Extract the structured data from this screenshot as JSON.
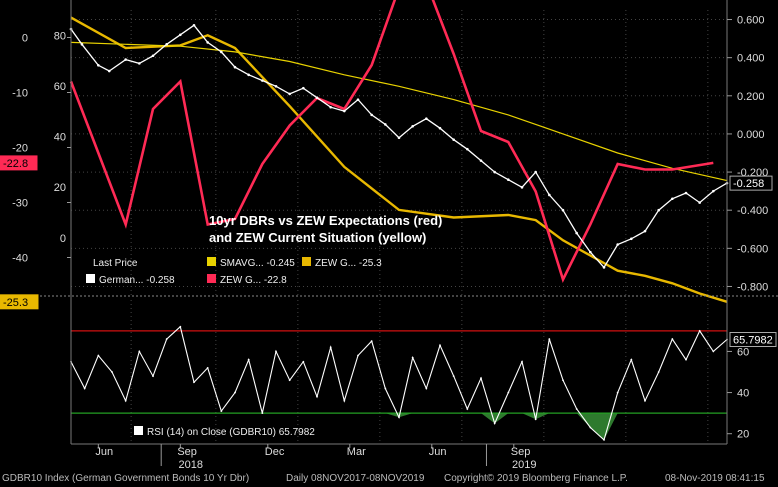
{
  "colors": {
    "background": "#000000",
    "dbr_price": "#ffffff",
    "smavg": "#e8d200",
    "zew_current": "#e8b800",
    "zew_expectations": "#ff2a55",
    "rsi": "#ffffff",
    "rsi_upper": "#d01010",
    "rsi_lower": "#23a023",
    "rsi_fill": "#2e7a2e",
    "grid": "#444444"
  },
  "footer": {
    "ticker": "GDBR10 Index (German Government Bonds 10 Yr Dbr)",
    "range": "Daily 08NOV2017-08NOV2019",
    "copyright": "Copyright© 2019 Bloomberg Finance L.P.",
    "timestamp": "08-Nov-2019 08:41:15"
  },
  "chart_data": [
    {
      "type": "line",
      "title": "10yr DBRs vs ZEW Expectations (red) and ZEW Current Situation (yellow)",
      "title_lines": [
        "10yr DBRs vs ZEW Expectations (red)",
        "and ZEW Current Situation (yellow)"
      ],
      "x_ticks": [
        "Jun",
        "Sep",
        "Dec",
        "Mar",
        "Jun",
        "Sep"
      ],
      "x_years": [
        "2018",
        "2019"
      ],
      "right_axis": {
        "ticks": [
          "0.600",
          "0.400",
          "0.200",
          "0.000",
          "-0.200",
          "-0.400",
          "-0.600",
          "-0.800"
        ],
        "ylim": [
          -0.85,
          0.65
        ]
      },
      "left_axis_red": {
        "ticks": [
          "0",
          "-10",
          "-20",
          "-30",
          "-40"
        ],
        "ylim": [
          -47,
          5
        ]
      },
      "left_axis_yellow": {
        "ticks": [
          "80",
          "60",
          "40",
          "20",
          "0"
        ],
        "ylim": [
          -23,
          90
        ]
      },
      "legend": {
        "header": "Last Price",
        "items": [
          {
            "label": "German... -0.258",
            "color_key": "dbr_price"
          },
          {
            "label": "SMAVG... -0.245",
            "color_key": "smavg"
          },
          {
            "label": "ZEW G... -25.3",
            "color_key": "zew_current"
          },
          {
            "label": "ZEW G... -22.8",
            "color_key": "zew_expectations"
          }
        ]
      },
      "last_value_tags": {
        "dbr": "-0.258",
        "zew_expectations": "-22.8",
        "zew_current": "-25.3"
      },
      "series": [
        {
          "name": "German...",
          "axis": "right",
          "x": [
            0,
            0.4,
            1,
            1.4,
            2,
            2.5,
            3,
            3.5,
            4,
            4.5,
            5,
            5.5,
            6,
            6.5,
            7,
            7.5,
            8,
            8.5,
            9,
            9.5,
            10,
            10.5,
            11,
            11.5,
            12,
            12.5,
            13,
            13.5,
            14,
            14.5,
            15,
            15.5,
            16,
            16.5,
            17,
            17.5,
            18,
            18.5,
            19,
            19.5,
            20,
            20.5,
            21,
            21.5,
            22,
            22.5,
            23,
            23.5,
            24
          ],
          "values": [
            0.55,
            0.47,
            0.36,
            0.33,
            0.39,
            0.37,
            0.41,
            0.47,
            0.52,
            0.57,
            0.48,
            0.43,
            0.35,
            0.31,
            0.28,
            0.25,
            0.21,
            0.24,
            0.19,
            0.14,
            0.12,
            0.18,
            0.1,
            0.05,
            -0.02,
            0.04,
            0.08,
            0.03,
            -0.03,
            -0.08,
            -0.14,
            -0.2,
            -0.24,
            -0.28,
            -0.2,
            -0.32,
            -0.4,
            -0.52,
            -0.62,
            -0.7,
            -0.58,
            -0.55,
            -0.51,
            -0.4,
            -0.34,
            -0.31,
            -0.36,
            -0.3,
            -0.258
          ]
        },
        {
          "name": "SMAVG...",
          "axis": "right",
          "x": [
            0,
            2,
            4,
            6,
            8,
            10,
            12,
            14,
            16,
            18,
            20,
            22,
            24
          ],
          "values": [
            0.48,
            0.47,
            0.46,
            0.43,
            0.38,
            0.31,
            0.25,
            0.18,
            0.1,
            0.0,
            -0.1,
            -0.18,
            -0.245
          ]
        },
        {
          "name": "ZEW G...",
          "axis": "left_red",
          "x": [
            0,
            2,
            3,
            4,
            5,
            6,
            7,
            8,
            9,
            10,
            11,
            12,
            13,
            14,
            15,
            16,
            17,
            18,
            19,
            20,
            21,
            22,
            23.5
          ],
          "values": [
            -8,
            -34,
            -13,
            -8,
            -34,
            -33,
            -23,
            -16,
            -11,
            -13,
            -5,
            9,
            10,
            -3,
            -17,
            -19,
            -28,
            -44,
            -34,
            -23,
            -24,
            -24,
            -22.8
          ]
        },
        {
          "name": "ZEW G...",
          "axis": "left_yellow",
          "x": [
            0,
            2,
            4,
            5,
            6,
            8,
            10,
            12,
            14,
            16,
            17,
            18,
            19,
            20,
            21,
            22,
            23,
            24
          ],
          "values": [
            87,
            75,
            76,
            80,
            75,
            52,
            28,
            11,
            8,
            9,
            7,
            -1,
            -7,
            -13,
            -15,
            -18,
            -22,
            -25.3
          ]
        }
      ]
    },
    {
      "type": "line",
      "title": "RSI (14) on Close (GDBR10)",
      "legend_label": "RSI (14)  on Close (GDBR10) 65.7982",
      "last_value_tag": "65.7982",
      "y_ticks": [
        "60",
        "40",
        "20"
      ],
      "ylim": [
        15,
        85
      ],
      "levels": [
        70,
        30
      ],
      "series": [
        {
          "name": "RSI (14)",
          "x": [
            0,
            0.5,
            1,
            1.5,
            2,
            2.5,
            3,
            3.5,
            4,
            4.5,
            5,
            5.5,
            6,
            6.5,
            7,
            7.5,
            8,
            8.5,
            9,
            9.5,
            10,
            10.5,
            11,
            11.5,
            12,
            12.5,
            13,
            13.5,
            14,
            14.5,
            15,
            15.5,
            16,
            16.5,
            17,
            17.5,
            18,
            18.5,
            19,
            19.5,
            20,
            20.5,
            21,
            21.5,
            22,
            22.5,
            23,
            23.5,
            24
          ],
          "values": [
            55,
            42,
            58,
            50,
            36,
            60,
            48,
            66,
            72,
            45,
            52,
            31,
            40,
            56,
            30,
            60,
            46,
            55,
            38,
            62,
            36,
            58,
            65,
            42,
            28,
            57,
            42,
            63,
            48,
            32,
            47,
            25,
            40,
            55,
            27,
            66,
            46,
            32,
            23,
            17,
            40,
            56,
            36,
            50,
            66,
            56,
            70,
            60,
            65.8
          ]
        }
      ]
    }
  ]
}
